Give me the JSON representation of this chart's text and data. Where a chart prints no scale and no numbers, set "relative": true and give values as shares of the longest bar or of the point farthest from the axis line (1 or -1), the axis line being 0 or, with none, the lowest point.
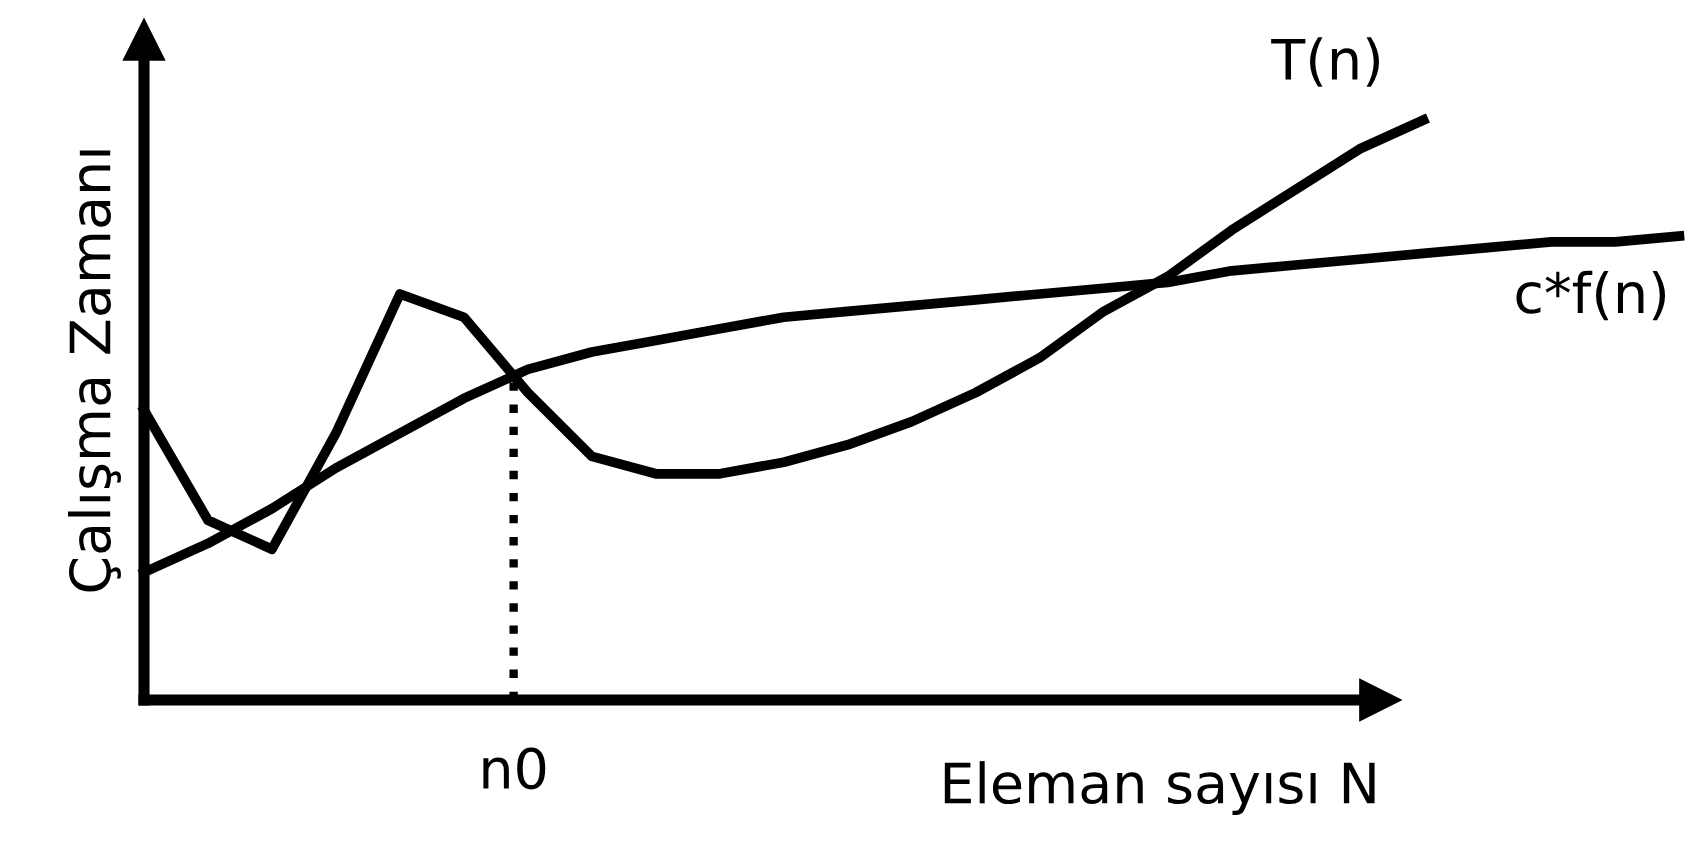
{
  "chart_data": {
    "type": "line",
    "relative": true,
    "xlabel": "Eleman sayısı N",
    "ylabel": "Çalışma Zamanı",
    "legend": false,
    "marker": "none",
    "line_style": "solid",
    "categories": [
      null,
      null,
      null,
      null,
      null,
      null,
      null,
      null,
      null,
      null,
      null,
      null,
      null,
      null,
      null,
      null,
      null,
      null,
      null,
      null,
      null,
      null,
      null,
      null,
      null
    ],
    "series": [
      {
        "name": "T(n)",
        "color": "#000000",
        "values": [
          0.5,
          0.31,
          0.26,
          0.46,
          0.7,
          0.66,
          0.53,
          0.42,
          0.39,
          0.39,
          0.41,
          0.44,
          0.48,
          0.53,
          0.59,
          0.67,
          0.73,
          0.81,
          0.88,
          0.95,
          1.0,
          null,
          null,
          null,
          null
        ]
      },
      {
        "name": "c*f(n)",
        "color": "#000000",
        "values": [
          0.22,
          0.27,
          0.33,
          0.4,
          0.46,
          0.52,
          0.57,
          0.6,
          0.62,
          0.64,
          0.66,
          0.67,
          0.68,
          0.69,
          0.7,
          0.71,
          0.72,
          0.74,
          0.75,
          0.76,
          0.77,
          0.78,
          0.79,
          0.79,
          0.8
        ]
      }
    ],
    "annotations": [
      "n0"
    ]
  }
}
